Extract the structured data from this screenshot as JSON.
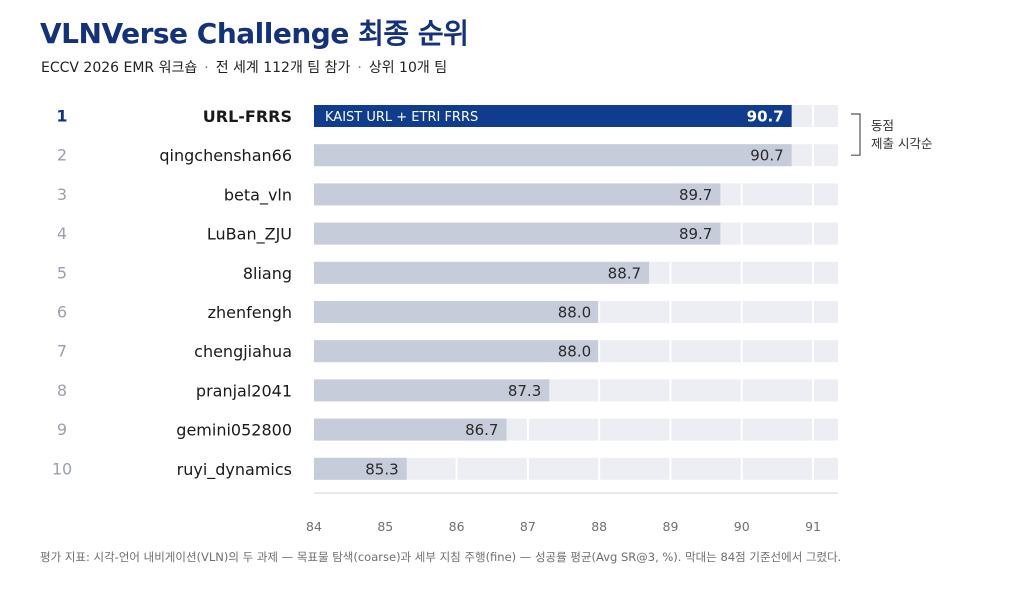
{
  "header": {
    "title": "VLNVerse Challenge 최종 순위",
    "subtitle_parts": [
      "ECCV 2026 EMR 워크숍",
      "전 세계 112개 팀 참가",
      "상위 10개 팀"
    ],
    "separator": "·"
  },
  "chart_data": {
    "type": "bar",
    "orientation": "horizontal",
    "baseline": 84,
    "xlim": [
      84,
      91.35
    ],
    "xticks": [
      84,
      85,
      86,
      87,
      88,
      89,
      90,
      91
    ],
    "grid": true,
    "ranks": [
      "1",
      "2",
      "3",
      "4",
      "5",
      "6",
      "7",
      "8",
      "9",
      "10"
    ],
    "categories": [
      "URL-FRRS",
      "qingchenshan66",
      "beta_vln",
      "LuBan_ZJU",
      "8liang",
      "zhenfengh",
      "chengjiahua",
      "pranjal2041",
      "gemini052800",
      "ruyi_dynamics"
    ],
    "values": [
      90.7,
      90.7,
      89.7,
      89.7,
      88.7,
      88.0,
      88.0,
      87.3,
      86.7,
      85.3
    ],
    "value_labels": [
      "90.7",
      "90.7",
      "89.7",
      "89.7",
      "88.7",
      "88.0",
      "88.0",
      "87.3",
      "86.7",
      "85.3"
    ],
    "highlight_index": 0,
    "highlight_inner_label": "KAIST URL + ETRI FRRS",
    "annotation": {
      "lines": [
        "동점",
        "제출 시각순"
      ],
      "rows": [
        0,
        1
      ]
    },
    "colors": {
      "highlight": "#0f3c8c",
      "bar": "#c6ccd9",
      "track": "#eceef4",
      "grid": "#ffffff",
      "rank_highlight": "#13327a",
      "rank": "#9aa0ad",
      "name": "#1a1a1a",
      "value": "#2a2a2a",
      "axis": "#d0d3da",
      "tick": "#707070"
    }
  },
  "footnote": "평가 지표: 시각-언어 내비게이션(VLN)의 두 과제 — 목표물 탐색(coarse)과 세부 지침 주행(fine) — 성공률 평균(Avg SR@3, %). 막대는 84점 기준선에서 그렸다."
}
